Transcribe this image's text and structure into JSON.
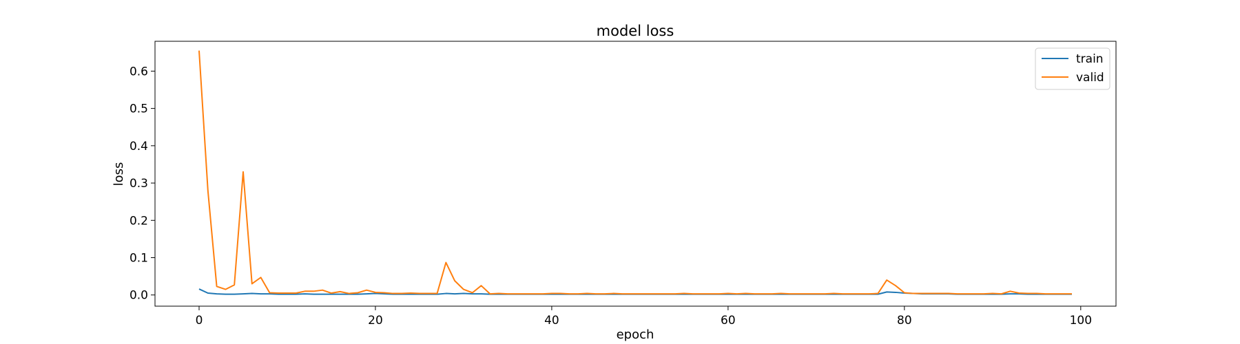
{
  "chart_data": {
    "type": "line",
    "title": "model loss",
    "xlabel": "epoch",
    "ylabel": "loss",
    "xlim": [
      -5,
      104
    ],
    "ylim": [
      -0.03,
      0.68
    ],
    "xticks": [
      0,
      20,
      40,
      60,
      80,
      100
    ],
    "yticks": [
      0.0,
      0.1,
      0.2,
      0.3,
      0.4,
      0.5,
      0.6
    ],
    "grid": false,
    "legend_position": "top-right",
    "x": [
      0,
      1,
      2,
      3,
      4,
      5,
      6,
      7,
      8,
      9,
      10,
      11,
      12,
      13,
      14,
      15,
      16,
      17,
      18,
      19,
      20,
      21,
      22,
      23,
      24,
      25,
      26,
      27,
      28,
      29,
      30,
      31,
      32,
      33,
      34,
      35,
      36,
      37,
      38,
      39,
      40,
      41,
      42,
      43,
      44,
      45,
      46,
      47,
      48,
      49,
      50,
      51,
      52,
      53,
      54,
      55,
      56,
      57,
      58,
      59,
      60,
      61,
      62,
      63,
      64,
      65,
      66,
      67,
      68,
      69,
      70,
      71,
      72,
      73,
      74,
      75,
      76,
      77,
      78,
      79,
      80,
      81,
      82,
      83,
      84,
      85,
      86,
      87,
      88,
      89,
      90,
      91,
      92,
      93,
      94,
      95,
      96,
      97,
      98,
      99
    ],
    "series": [
      {
        "name": "train",
        "color": "#1f77b4",
        "values": [
          0.016,
          0.005,
          0.003,
          0.002,
          0.002,
          0.003,
          0.004,
          0.003,
          0.003,
          0.002,
          0.002,
          0.002,
          0.003,
          0.002,
          0.002,
          0.002,
          0.002,
          0.002,
          0.002,
          0.003,
          0.004,
          0.003,
          0.002,
          0.002,
          0.002,
          0.002,
          0.002,
          0.002,
          0.004,
          0.003,
          0.004,
          0.003,
          0.003,
          0.002,
          0.002,
          0.002,
          0.002,
          0.002,
          0.002,
          0.002,
          0.002,
          0.002,
          0.002,
          0.002,
          0.002,
          0.002,
          0.002,
          0.002,
          0.002,
          0.002,
          0.002,
          0.002,
          0.002,
          0.002,
          0.002,
          0.002,
          0.002,
          0.002,
          0.002,
          0.002,
          0.002,
          0.002,
          0.002,
          0.002,
          0.002,
          0.002,
          0.002,
          0.002,
          0.002,
          0.002,
          0.002,
          0.002,
          0.002,
          0.002,
          0.002,
          0.002,
          0.002,
          0.002,
          0.008,
          0.007,
          0.005,
          0.004,
          0.003,
          0.003,
          0.003,
          0.003,
          0.002,
          0.002,
          0.002,
          0.002,
          0.002,
          0.002,
          0.003,
          0.003,
          0.002,
          0.002,
          0.002,
          0.002,
          0.002,
          0.002
        ]
      },
      {
        "name": "valid",
        "color": "#ff7f0e",
        "values": [
          0.655,
          0.28,
          0.023,
          0.015,
          0.027,
          0.33,
          0.03,
          0.047,
          0.006,
          0.005,
          0.005,
          0.005,
          0.01,
          0.01,
          0.013,
          0.005,
          0.009,
          0.004,
          0.006,
          0.013,
          0.007,
          0.006,
          0.004,
          0.004,
          0.005,
          0.004,
          0.004,
          0.004,
          0.087,
          0.038,
          0.015,
          0.006,
          0.025,
          0.003,
          0.004,
          0.003,
          0.003,
          0.003,
          0.003,
          0.003,
          0.004,
          0.004,
          0.003,
          0.003,
          0.004,
          0.003,
          0.003,
          0.004,
          0.003,
          0.003,
          0.003,
          0.003,
          0.003,
          0.003,
          0.003,
          0.004,
          0.003,
          0.003,
          0.003,
          0.003,
          0.004,
          0.003,
          0.004,
          0.003,
          0.003,
          0.003,
          0.004,
          0.003,
          0.003,
          0.003,
          0.003,
          0.003,
          0.004,
          0.003,
          0.003,
          0.003,
          0.003,
          0.004,
          0.04,
          0.025,
          0.006,
          0.004,
          0.004,
          0.004,
          0.004,
          0.004,
          0.003,
          0.003,
          0.003,
          0.003,
          0.004,
          0.003,
          0.01,
          0.005,
          0.004,
          0.004,
          0.003,
          0.003,
          0.003,
          0.003
        ]
      }
    ]
  }
}
